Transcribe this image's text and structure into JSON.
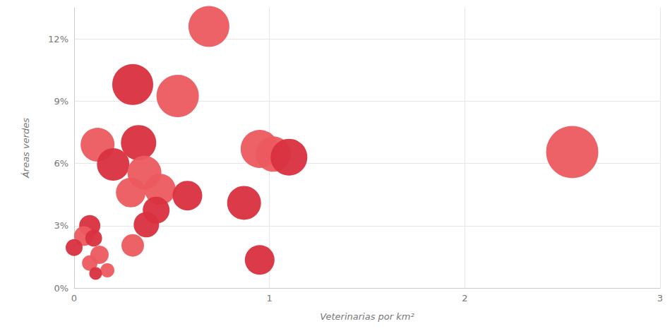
{
  "chart_data": {
    "type": "scatter",
    "xlabel": "Veterinarias por km²",
    "ylabel": "Áreas verdes",
    "x": [
      0.69,
      0.3,
      0.53,
      0.12,
      0.33,
      0.2,
      0.36,
      0.29,
      0.44,
      0.58,
      0.42,
      0.37,
      0.87,
      0.95,
      1.02,
      1.1,
      0.95,
      2.55,
      0.3,
      0.08,
      0.05,
      0.1,
      0.0,
      0.13,
      0.08,
      0.17,
      0.11
    ],
    "values": [
      12.6,
      9.8,
      9.25,
      6.9,
      7.0,
      5.95,
      5.55,
      4.6,
      4.75,
      4.45,
      3.75,
      3.05,
      4.1,
      6.7,
      6.45,
      6.3,
      1.35,
      6.55,
      2.05,
      3.0,
      2.5,
      2.4,
      1.95,
      1.6,
      1.2,
      0.85,
      0.7
    ],
    "sizes": [
      58,
      58,
      60,
      48,
      50,
      46,
      48,
      42,
      44,
      42,
      38,
      36,
      48,
      54,
      50,
      52,
      42,
      74,
      32,
      30,
      28,
      24,
      24,
      26,
      22,
      20,
      18
    ],
    "colors": [
      "#ec5a5f",
      "#d9303f",
      "#ec5a5f",
      "#ec5a5f",
      "#d9303f",
      "#d9303f",
      "#ec5a5f",
      "#ec5a5f",
      "#ec5a5f",
      "#d9303f",
      "#d9303f",
      "#d9303f",
      "#d9303f",
      "#ec5a5f",
      "#ec5a5f",
      "#d9303f",
      "#d9303f",
      "#ec5a5f",
      "#ec5a5f",
      "#d9303f",
      "#ec5a5f",
      "#d9303f",
      "#d9303f",
      "#ec5a5f",
      "#ec5a5f",
      "#ec5a5f",
      "#d9303f"
    ],
    "xlim": [
      0,
      3
    ],
    "xticks": [
      0,
      1,
      2,
      3
    ],
    "ylim": [
      0,
      13.5
    ],
    "yticks": [
      {
        "value": 0,
        "label": "0%"
      },
      {
        "value": 3,
        "label": "3%"
      },
      {
        "value": 6,
        "label": "6%"
      },
      {
        "value": 9,
        "label": "9%"
      },
      {
        "value": 12,
        "label": "12%"
      }
    ],
    "grid": true
  }
}
